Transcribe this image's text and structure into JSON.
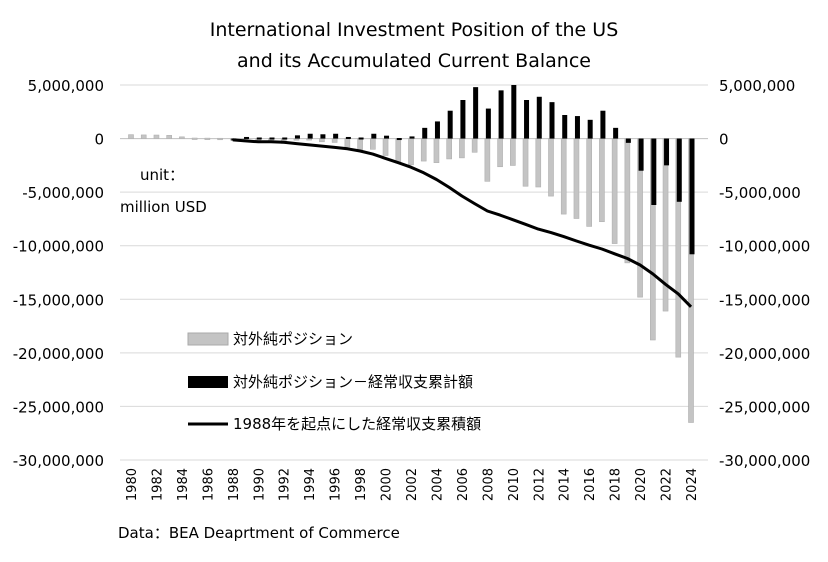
{
  "chart_data": {
    "type": "bar",
    "title": [
      "International Investment Position of the US",
      "and its Accumulated Current Balance"
    ],
    "unit_label": [
      "unit：",
      "million USD"
    ],
    "source": "Data：BEA Deaprtment of Commerce",
    "ylim": [
      -30000000,
      5000000
    ],
    "yticks": [
      5000000,
      0,
      -5000000,
      -10000000,
      -15000000,
      -20000000,
      -25000000,
      -30000000
    ],
    "ytick_labels": [
      "5,000,000",
      "0",
      "-5,000,000",
      "-10,000,000",
      "-15,000,000",
      "-20,000,000",
      "-25,000,000",
      "-30,000,000"
    ],
    "grid": true,
    "legend_position": "lower-left inside",
    "x": [
      1980,
      1981,
      1982,
      1983,
      1984,
      1985,
      1986,
      1987,
      1988,
      1989,
      1990,
      1991,
      1992,
      1993,
      1994,
      1995,
      1996,
      1997,
      1998,
      1999,
      2000,
      2001,
      2002,
      2003,
      2004,
      2005,
      2006,
      2007,
      2008,
      2009,
      2010,
      2011,
      2012,
      2013,
      2014,
      2015,
      2016,
      2017,
      2018,
      2019,
      2020,
      2021,
      2022,
      2023,
      2024
    ],
    "xtick_labels": [
      "1980",
      "1982",
      "1984",
      "1986",
      "1988",
      "1990",
      "1992",
      "1994",
      "1996",
      "1998",
      "2000",
      "2002",
      "2004",
      "2006",
      "2008",
      "2010",
      "2012",
      "2014",
      "2016",
      "2018",
      "2020",
      "2022",
      "2024"
    ],
    "series": [
      {
        "name": "対外純ポジション",
        "kind": "bar",
        "color": "#c4c4c4",
        "values": [
          365000,
          340000,
          330000,
          300000,
          160000,
          50000,
          40000,
          30000,
          -100000,
          -300000,
          -250000,
          -300000,
          -450000,
          -150000,
          -130000,
          -300000,
          -360000,
          -820000,
          -1050000,
          -1000000,
          -1580000,
          -2300000,
          -2450000,
          -2100000,
          -2250000,
          -1900000,
          -1800000,
          -1280000,
          -3990000,
          -2630000,
          -2510000,
          -4450000,
          -4520000,
          -5370000,
          -7050000,
          -7460000,
          -8200000,
          -7760000,
          -9800000,
          -11600000,
          -14800000,
          -18800000,
          -16100000,
          -20400000,
          -26500000
        ]
      },
      {
        "name": "対外純ポジション－経常収支累計額",
        "kind": "bar",
        "color": "#000000",
        "values": [
          null,
          null,
          null,
          null,
          null,
          null,
          null,
          null,
          0,
          150000,
          100000,
          100000,
          100000,
          300000,
          450000,
          400000,
          450000,
          150000,
          100000,
          450000,
          270000,
          50000,
          200000,
          1000000,
          1600000,
          2600000,
          3600000,
          4800000,
          2800000,
          4500000,
          5000000,
          3600000,
          3900000,
          3400000,
          2200000,
          2100000,
          1750000,
          2600000,
          1000000,
          -400000,
          -3000000,
          -6200000,
          -2500000,
          -5900000,
          -10800000
        ]
      },
      {
        "name": "1988年を起点にした経常収支累積額",
        "kind": "line",
        "color": "#000000",
        "values": [
          null,
          null,
          null,
          null,
          null,
          null,
          null,
          null,
          -120000,
          -220000,
          -300000,
          -300000,
          -350000,
          -470000,
          -590000,
          -700000,
          -820000,
          -950000,
          -1160000,
          -1450000,
          -1850000,
          -2250000,
          -2670000,
          -3190000,
          -3820000,
          -4560000,
          -5360000,
          -6070000,
          -6760000,
          -7140000,
          -7570000,
          -8000000,
          -8450000,
          -8780000,
          -9150000,
          -9560000,
          -9950000,
          -10310000,
          -10750000,
          -11190000,
          -11800000,
          -12630000,
          -13600000,
          -14500000,
          -15700000
        ]
      }
    ]
  }
}
